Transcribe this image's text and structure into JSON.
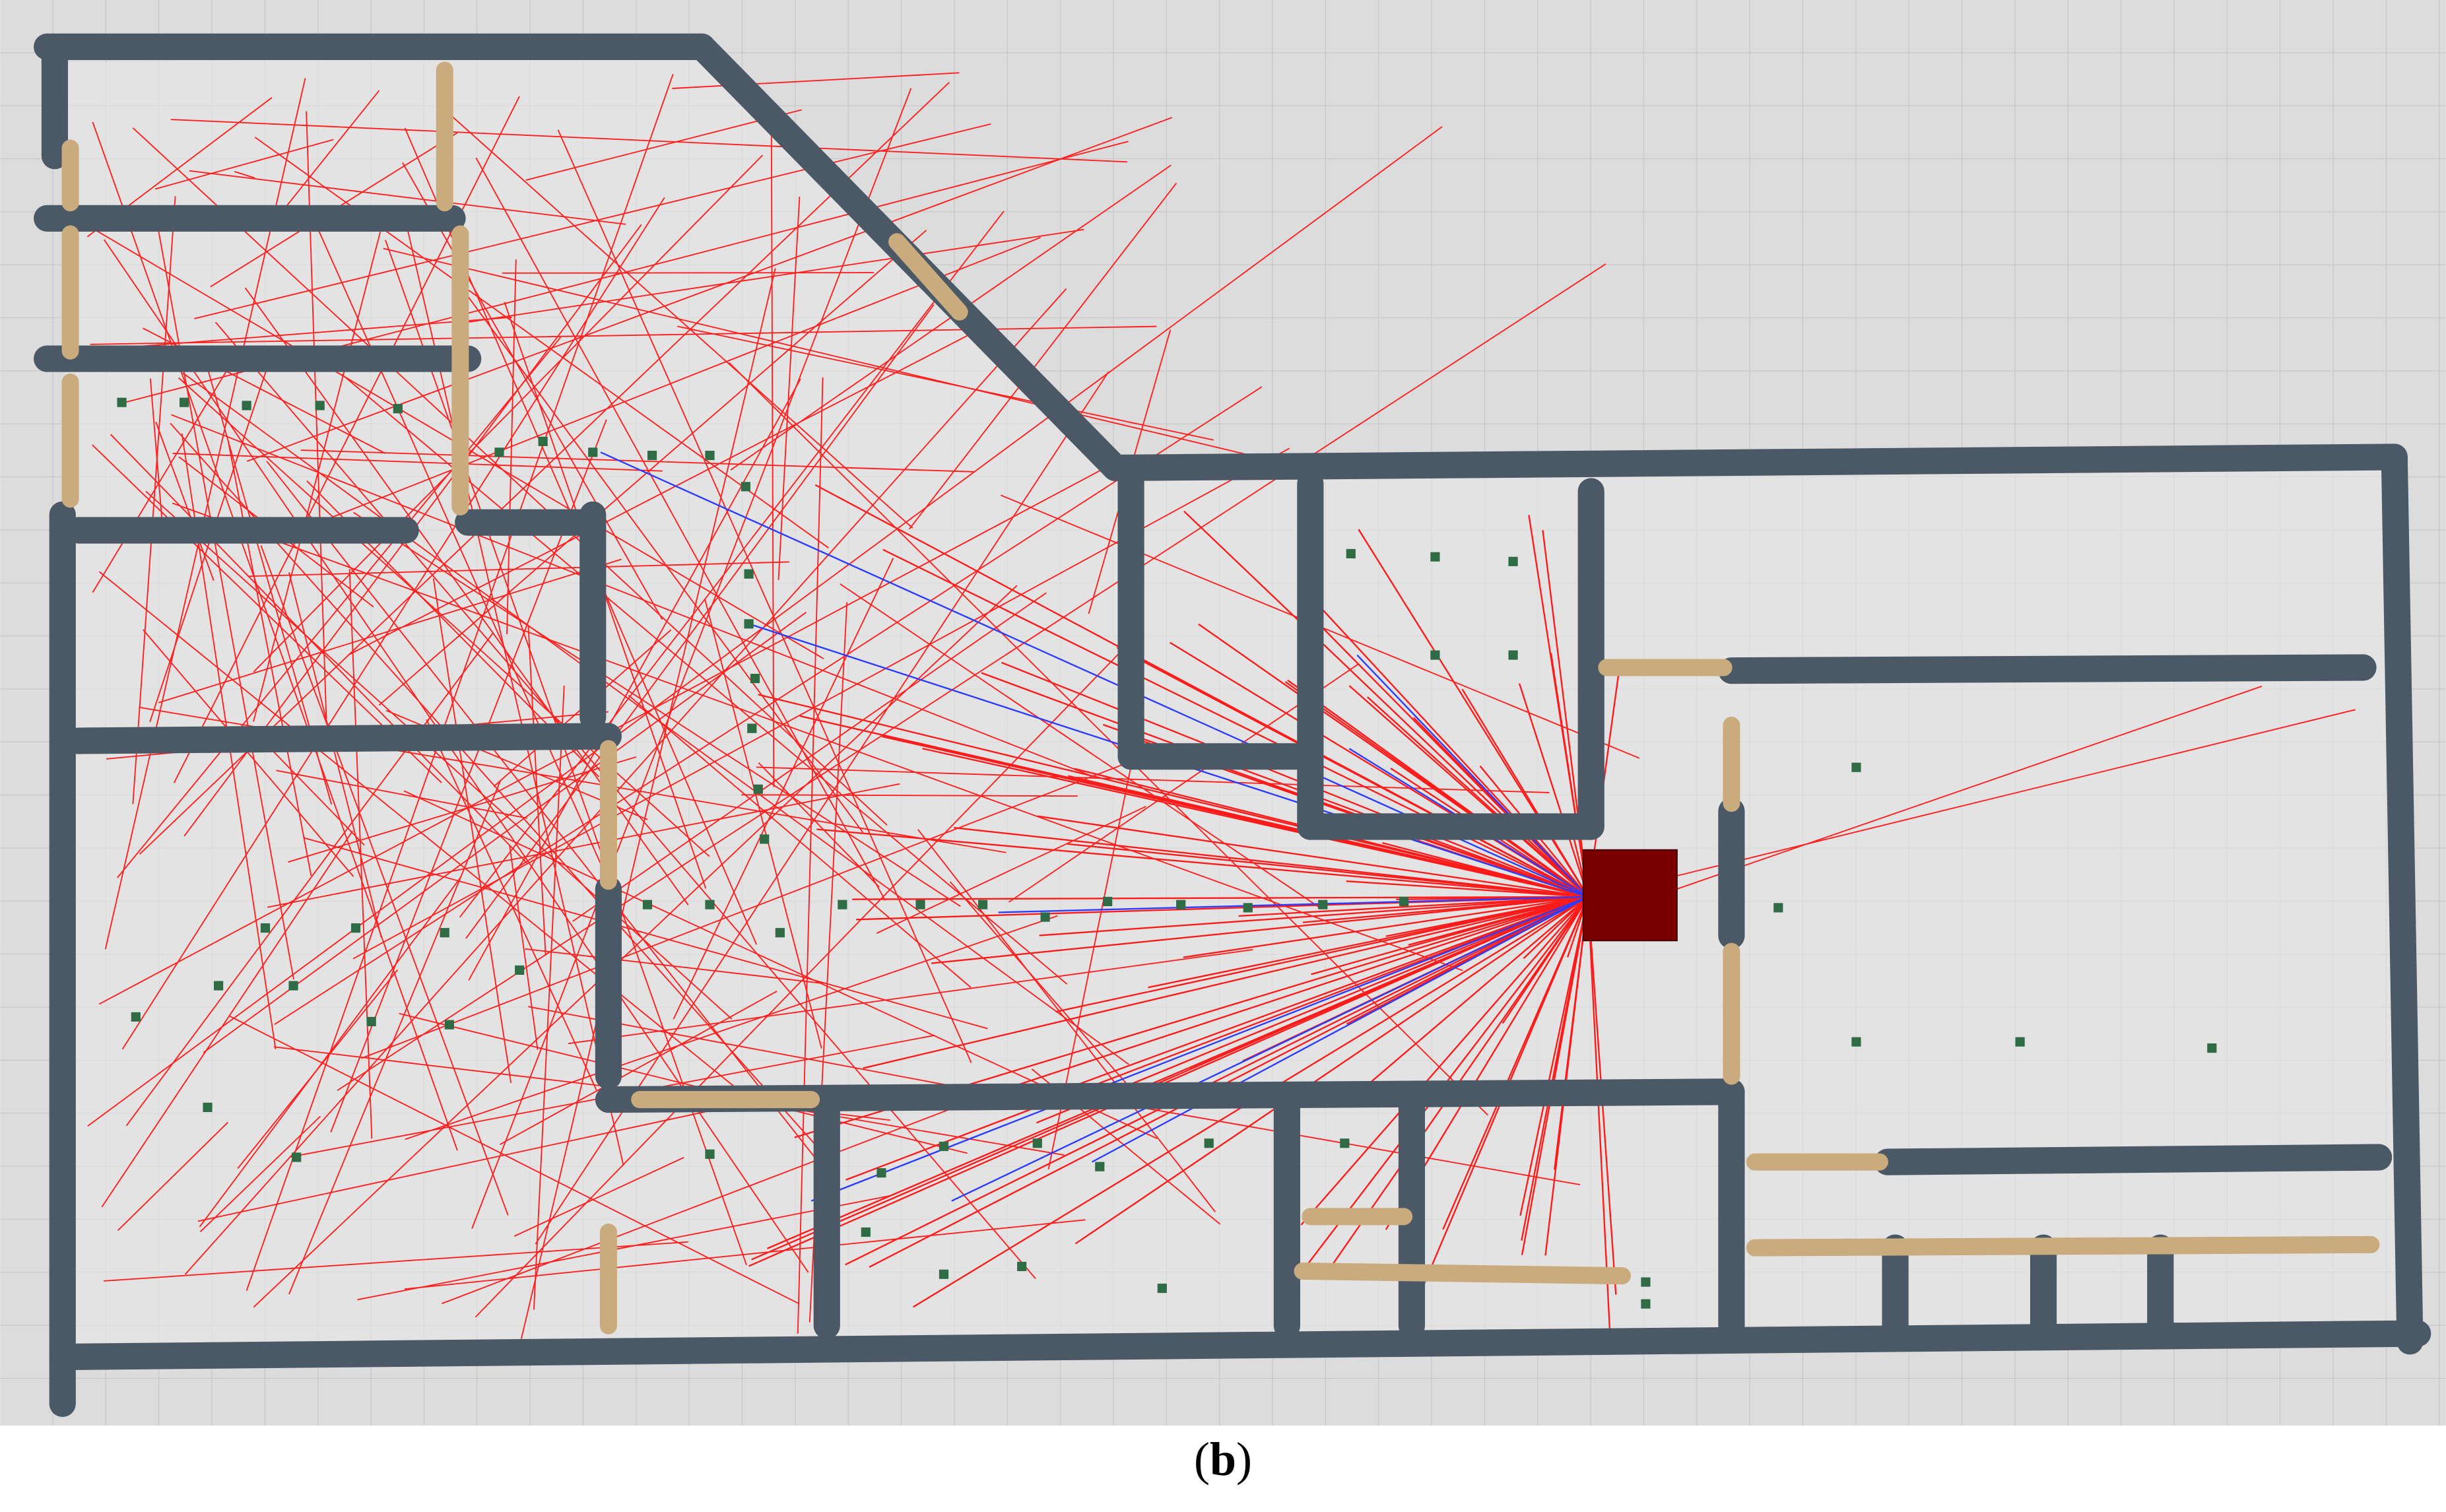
{
  "caption": {
    "open": "(",
    "letter": "b",
    "close": ")"
  }
}
